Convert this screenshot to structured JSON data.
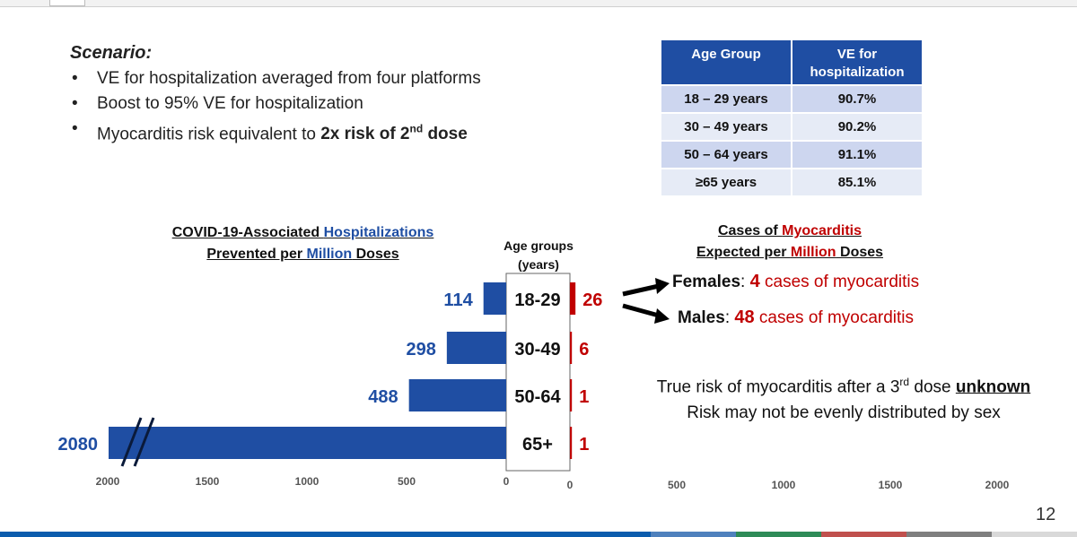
{
  "scenario": {
    "title": "Scenario:",
    "bullets": [
      "VE for hospitalization averaged from four platforms",
      "Boost to 95% VE for hospitalization"
    ],
    "bullet3_prefix": "Myocarditis risk equivalent to ",
    "bullet3_bold": "2x risk of 2",
    "bullet3_sup": "nd",
    "bullet3_bold_end": " dose"
  },
  "ve_table": {
    "headers": [
      "Age Group",
      "VE for hospitalization"
    ],
    "rows": [
      [
        "18 – 29 years",
        "90.7%"
      ],
      [
        "30 – 49 years",
        "90.2%"
      ],
      [
        "50 – 64 years",
        "91.1%"
      ],
      [
        "≥65 years",
        "85.1%"
      ]
    ]
  },
  "left_heading": {
    "line1_a": "COVID-19-Associated ",
    "line1_b": "Hospitalizations",
    "line2_a": "Prevented per ",
    "line2_b": "Million",
    "line2_c": " Doses"
  },
  "right_heading": {
    "line1_a": "Cases of ",
    "line1_b": "Myocarditis",
    "line2_a": "Expected per ",
    "line2_b": "Million",
    "line2_c": " Doses"
  },
  "age_header": {
    "line1": "Age groups",
    "line2": "(years)"
  },
  "chart_data": {
    "type": "bar",
    "orientation": "horizontal-butterfly",
    "categories": [
      "18-29",
      "30-49",
      "50-64",
      "65+"
    ],
    "series": [
      {
        "name": "COVID-19-Associated Hospitalizations Prevented per Million Doses",
        "values": [
          114,
          298,
          488,
          2080
        ],
        "color": "#1f4ea3"
      },
      {
        "name": "Cases of Myocarditis Expected per Million Doses",
        "values": [
          26,
          6,
          1,
          1
        ],
        "color": "#c00000"
      }
    ],
    "left_axis": {
      "ticks": [
        "2000",
        "1500",
        "1000",
        "500",
        "0"
      ],
      "range": [
        0,
        2000
      ],
      "note": "2080 bar has axis break"
    },
    "right_axis": {
      "ticks": [
        "0",
        "500",
        "1000",
        "1500",
        "2000"
      ],
      "range": [
        0,
        2000
      ]
    }
  },
  "callouts": {
    "females_label": "Females",
    "females_num": "4",
    "females_text": " cases of myocarditis",
    "males_label": "Males",
    "males_num": "48",
    "males_text": " cases of myocarditis",
    "sep": ": "
  },
  "note": {
    "line1_a": "True risk of myocarditis after a 3",
    "line1_sup": "rd",
    "line1_b": " dose ",
    "line1_bold": "unknown",
    "line2": "Risk may not be evenly distributed by sex"
  },
  "page_number": "12",
  "colors": {
    "blue": "#1f4ea3",
    "red": "#c00000",
    "footer": [
      "#0b5cad",
      "#4f81bd",
      "#2e8b57",
      "#c0504d",
      "#7f7f7f",
      "#d9d9d9"
    ]
  }
}
